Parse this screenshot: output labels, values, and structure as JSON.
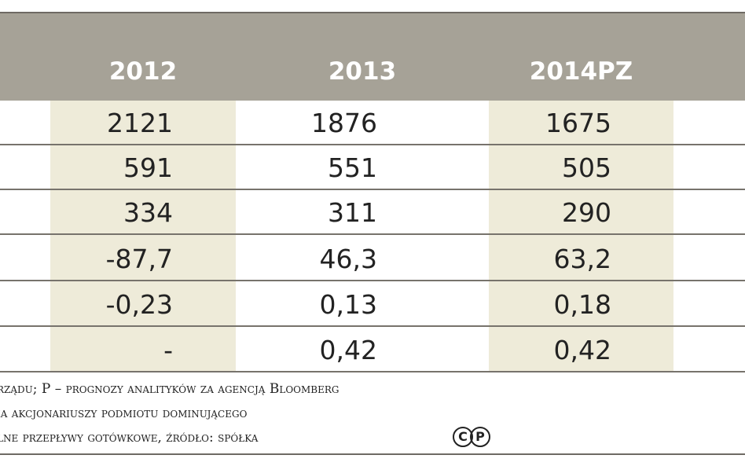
{
  "table": {
    "columns": [
      "2012",
      "2013",
      "2014PZ"
    ],
    "rows": [
      [
        "2121",
        "1876",
        "1675"
      ],
      [
        "591",
        "551",
        "505"
      ],
      [
        "334",
        "311",
        "290"
      ],
      [
        "-87,7",
        "46,3",
        "63,2"
      ],
      [
        "-0,23",
        "0,13",
        "0,18"
      ],
      [
        "-",
        "0,42",
        "0,42"
      ]
    ]
  },
  "notes": [
    "rządu; P – prognozy analityków za agencją Bloomberg",
    "ia akcjonariuszy podmiotu dominującego",
    "lne przepływy gotówkowe, źródło: spółka"
  ],
  "badge": {
    "c": "C",
    "p": "P"
  },
  "colors": {
    "header": "#a6a297",
    "highlight": "#eeebd9",
    "rule": "#77736c"
  }
}
